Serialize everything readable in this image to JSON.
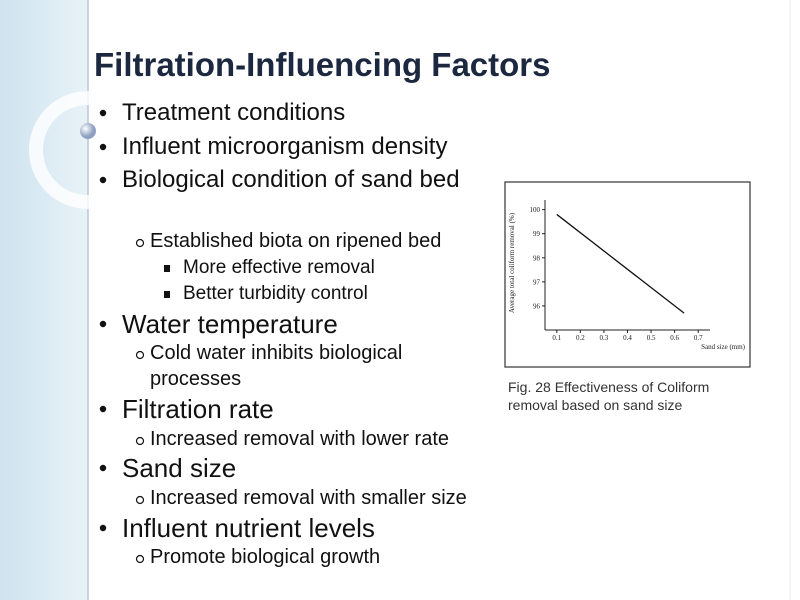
{
  "slide": {
    "title": "Filtration-Influencing Factors",
    "bullets": [
      {
        "text": "Treatment conditions"
      },
      {
        "text": "Influent microorganism density"
      },
      {
        "text": "Biological condition of sand bed",
        "sub": [
          {
            "text": "Established biota on ripened bed",
            "sub": [
              {
                "text": "More effective removal"
              },
              {
                "text": "Better turbidity control"
              }
            ]
          }
        ]
      },
      {
        "text": "Water temperature",
        "sub": [
          {
            "text": "Cold water inhibits biological processes"
          }
        ]
      },
      {
        "text": "Filtration rate",
        "sub": [
          {
            "text": "Increased removal with lower rate"
          }
        ]
      },
      {
        "text": "Sand size",
        "sub": [
          {
            "text": "Increased removal with smaller size"
          }
        ]
      },
      {
        "text": "Influent nutrient levels",
        "sub": [
          {
            "text": "Promote biological growth"
          }
        ]
      }
    ],
    "caption": "Fig. 28 Effectiveness of Coliform removal based on sand size"
  },
  "chart_data": {
    "type": "line",
    "x_label": "Sand size (mm)",
    "y_label": "Average total coliform removal (%)",
    "x": [
      0.1,
      0.64
    ],
    "values": [
      99.8,
      95.7
    ],
    "color": "#111111",
    "xlim": [
      0.05,
      0.75
    ],
    "xticks": [
      0.1,
      0.2,
      0.3,
      0.4,
      0.5,
      0.6,
      0.7
    ],
    "ylim": [
      95,
      100.4
    ],
    "yticks": [
      100,
      99,
      98,
      97,
      96
    ]
  }
}
